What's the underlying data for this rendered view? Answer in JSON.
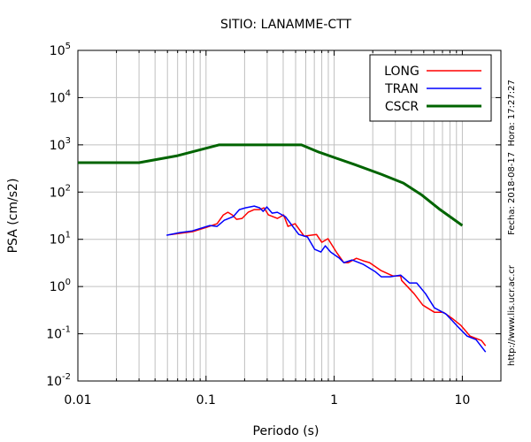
{
  "chart_data": {
    "type": "line",
    "title": "SITIO: LANAMME-CTT",
    "xlabel": "Periodo (s)",
    "ylabel": "PSA (cm/s2)",
    "xscale": "log",
    "yscale": "log",
    "xlim": [
      0.01,
      20
    ],
    "ylim": [
      0.01,
      100000
    ],
    "grid": true,
    "legend_position": "top-right",
    "x_ticks": [
      {
        "value": 0.01,
        "label": "0.01"
      },
      {
        "value": 0.1,
        "label": "0.1"
      },
      {
        "value": 1,
        "label": "1"
      },
      {
        "value": 10,
        "label": "10"
      }
    ],
    "y_ticks": [
      {
        "value": 0.01,
        "base": "10",
        "exp": "-2"
      },
      {
        "value": 0.1,
        "base": "10",
        "exp": "-1"
      },
      {
        "value": 1,
        "base": "10",
        "exp": "0"
      },
      {
        "value": 10,
        "base": "10",
        "exp": "1"
      },
      {
        "value": 100,
        "base": "10",
        "exp": "2"
      },
      {
        "value": 1000,
        "base": "10",
        "exp": "3"
      },
      {
        "value": 10000,
        "base": "10",
        "exp": "4"
      },
      {
        "value": 100000,
        "base": "10",
        "exp": "5"
      }
    ],
    "series": [
      {
        "name": "LONG",
        "color": "#ff0000",
        "width": 1.5,
        "points": [
          [
            0.052,
            12.5
          ],
          [
            0.0781,
            14.5
          ],
          [
            0.1008,
            18.0
          ],
          [
            0.122,
            21.4
          ],
          [
            0.1365,
            32.9
          ],
          [
            0.148,
            37.4
          ],
          [
            0.16,
            32.9
          ],
          [
            0.173,
            26.5
          ],
          [
            0.191,
            27.7
          ],
          [
            0.213,
            37.4
          ],
          [
            0.238,
            42.6
          ],
          [
            0.262,
            42.6
          ],
          [
            0.284,
            46.4
          ],
          [
            0.307,
            32.9
          ],
          [
            0.36,
            27.7
          ],
          [
            0.403,
            32.9
          ],
          [
            0.436,
            18.8
          ],
          [
            0.496,
            21.4
          ],
          [
            0.582,
            11.7
          ],
          [
            0.728,
            12.7
          ],
          [
            0.8,
            8.63
          ],
          [
            0.895,
            10.3
          ],
          [
            1.05,
            5.15
          ],
          [
            1.19,
            3.21
          ],
          [
            1.29,
            3.21
          ],
          [
            1.49,
            3.97
          ],
          [
            1.69,
            3.49
          ],
          [
            1.89,
            3.21
          ],
          [
            2.33,
            2.17
          ],
          [
            2.86,
            1.68
          ],
          [
            3.3,
            1.68
          ],
          [
            3.36,
            1.35
          ],
          [
            4.2,
            0.708
          ],
          [
            4.92,
            0.404
          ],
          [
            6.05,
            0.286
          ],
          [
            7.1,
            0.286
          ],
          [
            8.32,
            0.212
          ],
          [
            9.77,
            0.15
          ],
          [
            11.5,
            0.0894
          ],
          [
            14.1,
            0.0721
          ],
          [
            15.2,
            0.0556
          ]
        ]
      },
      {
        "name": "TRAN",
        "color": "#0000ff",
        "width": 1.5,
        "points": [
          [
            0.0492,
            12.2
          ],
          [
            0.0625,
            13.9
          ],
          [
            0.0781,
            15.1
          ],
          [
            0.107,
            19.6
          ],
          [
            0.122,
            18.8
          ],
          [
            0.139,
            25.4
          ],
          [
            0.163,
            30.1
          ],
          [
            0.182,
            42.6
          ],
          [
            0.203,
            46.4
          ],
          [
            0.238,
            50.6
          ],
          [
            0.262,
            46.4
          ],
          [
            0.279,
            39.1
          ],
          [
            0.298,
            48.5
          ],
          [
            0.328,
            35.8
          ],
          [
            0.36,
            37.4
          ],
          [
            0.416,
            30.1
          ],
          [
            0.458,
            21.4
          ],
          [
            0.529,
            12.7
          ],
          [
            0.62,
            11.2
          ],
          [
            0.705,
            6.12
          ],
          [
            0.788,
            5.38
          ],
          [
            0.853,
            7.26
          ],
          [
            0.938,
            5.38
          ],
          [
            1.1,
            3.97
          ],
          [
            1.19,
            3.21
          ],
          [
            1.38,
            3.65
          ],
          [
            1.69,
            2.94
          ],
          [
            2.08,
            2.08
          ],
          [
            2.33,
            1.61
          ],
          [
            2.73,
            1.61
          ],
          [
            3.3,
            1.75
          ],
          [
            3.87,
            1.19
          ],
          [
            4.4,
            1.19
          ],
          [
            5.16,
            0.708
          ],
          [
            6.05,
            0.355
          ],
          [
            7.45,
            0.262
          ],
          [
            9.31,
            0.138
          ],
          [
            10.9,
            0.0894
          ],
          [
            12.8,
            0.0752
          ],
          [
            15.2,
            0.0411
          ]
        ]
      },
      {
        "name": "CSCR",
        "color": "#006400",
        "width": 3,
        "points": [
          [
            0.01,
            420
          ],
          [
            0.03,
            420
          ],
          [
            0.06,
            591
          ],
          [
            0.126,
            1000
          ],
          [
            0.555,
            1000
          ],
          [
            0.76,
            702
          ],
          [
            1.44,
            384
          ],
          [
            2.33,
            239
          ],
          [
            3.47,
            155
          ],
          [
            4.77,
            88.7
          ],
          [
            6.56,
            44.5
          ],
          [
            10,
            19.6
          ]
        ]
      }
    ]
  },
  "side_text": {
    "date": "Fecha: 2018-08-17  Hora: 17:27:27",
    "url": "http://www.lis.ucr.ac.cr"
  }
}
